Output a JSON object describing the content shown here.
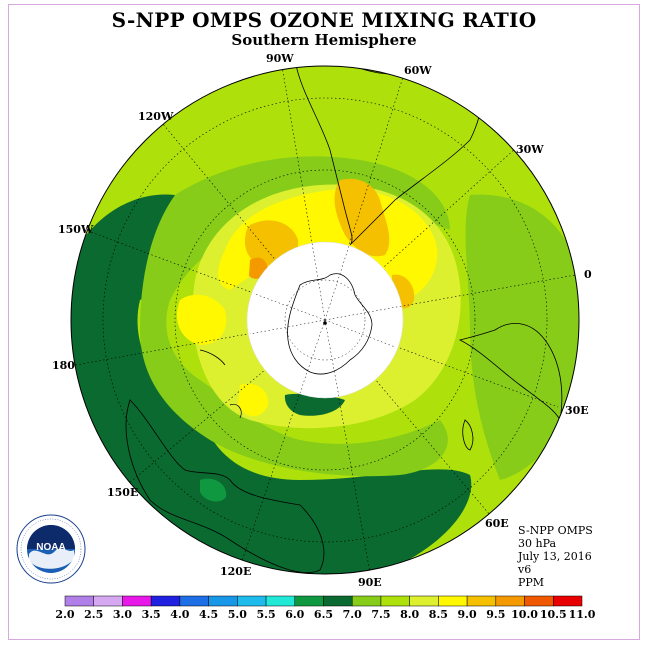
{
  "title": "S-NPP OMPS OZONE MIXING RATIO",
  "subtitle": "Southern Hemisphere",
  "longitude_labels": [
    "90W",
    "60W",
    "30W",
    "0",
    "30E",
    "60E",
    "90E",
    "120E",
    "150E",
    "180",
    "150W",
    "120W"
  ],
  "info": {
    "instrument": "S-NPP OMPS",
    "level": "30 hPa",
    "date": "July 13, 2016",
    "version": "v6",
    "units": "PPM"
  },
  "logo": {
    "text": "NOAA",
    "ring_text": "NATIONAL OCEANIC AND ATMOSPHERIC ADMINISTRATION · U.S. DEPARTMENT OF COMMERCE"
  },
  "chart_data": {
    "type": "heatmap",
    "projection": "south-polar-stereographic",
    "colorbar": {
      "ticks": [
        "2.0",
        "2.5",
        "3.0",
        "3.5",
        "4.0",
        "4.5",
        "5.0",
        "5.5",
        "6.0",
        "6.5",
        "7.0",
        "7.5",
        "8.0",
        "8.5",
        "9.0",
        "9.5",
        "10.0",
        "10.5",
        "11.0"
      ],
      "colors": [
        "#b07fe8",
        "#d6a8f2",
        "#e818e8",
        "#2020e0",
        "#1e6ee6",
        "#1896e8",
        "#1ebbec",
        "#22e8d8",
        "#109840",
        "#0a6a30",
        "#86cc18",
        "#aee00c",
        "#dcf030",
        "#fff800",
        "#f4c000",
        "#f49a00",
        "#f05800",
        "#e80000",
        "#7a4a2a"
      ]
    },
    "regions": [
      {
        "range": "6.5-7.0",
        "color": "#0a6a30",
        "location": "Pacific sector, 150W-90E, outer ring"
      },
      {
        "range": "7.0-7.5",
        "color": "#86cc18",
        "location": "mid latitudes"
      },
      {
        "range": "7.5-8.0",
        "color": "#aee00c",
        "location": "Atlantic / Indian Ocean sectors"
      },
      {
        "range": "8.0-8.5",
        "color": "#dcf030",
        "location": "around polar gap"
      },
      {
        "range": "8.5-9.0",
        "color": "#fff800",
        "location": "90W-0, near polar gap"
      },
      {
        "range": "9.0-9.5",
        "color": "#f4c000",
        "location": "South America / Drake Passage"
      },
      {
        "range": "9.5-10.0",
        "color": "#f49a00",
        "location": "small spots near 120W and 0"
      }
    ]
  }
}
